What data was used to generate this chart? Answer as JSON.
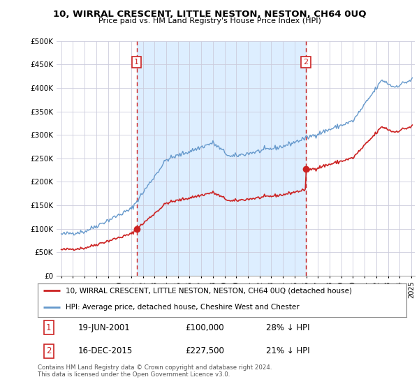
{
  "title": "10, WIRRAL CRESCENT, LITTLE NESTON, NESTON, CH64 0UQ",
  "subtitle": "Price paid vs. HM Land Registry's House Price Index (HPI)",
  "ytick_values": [
    0,
    50000,
    100000,
    150000,
    200000,
    250000,
    300000,
    350000,
    400000,
    450000,
    500000
  ],
  "ylim": [
    0,
    500000
  ],
  "xlim_start": 1994.6,
  "xlim_end": 2025.3,
  "hpi_color": "#6699cc",
  "price_color": "#cc2222",
  "dashed_color": "#cc2222",
  "fill_color": "#ddeeff",
  "purchase1_year": 2001.46,
  "purchase1_price": 100000,
  "purchase2_year": 2015.96,
  "purchase2_price": 227500,
  "legend_property": "10, WIRRAL CRESCENT, LITTLE NESTON, NESTON, CH64 0UQ (detached house)",
  "legend_hpi": "HPI: Average price, detached house, Cheshire West and Chester",
  "table_row1": [
    "1",
    "19-JUN-2001",
    "£100,000",
    "28% ↓ HPI"
  ],
  "table_row2": [
    "2",
    "16-DEC-2015",
    "£227,500",
    "21% ↓ HPI"
  ],
  "footer": "Contains HM Land Registry data © Crown copyright and database right 2024.\nThis data is licensed under the Open Government Licence v3.0.",
  "background_color": "#ffffff",
  "grid_color": "#ccccdd"
}
